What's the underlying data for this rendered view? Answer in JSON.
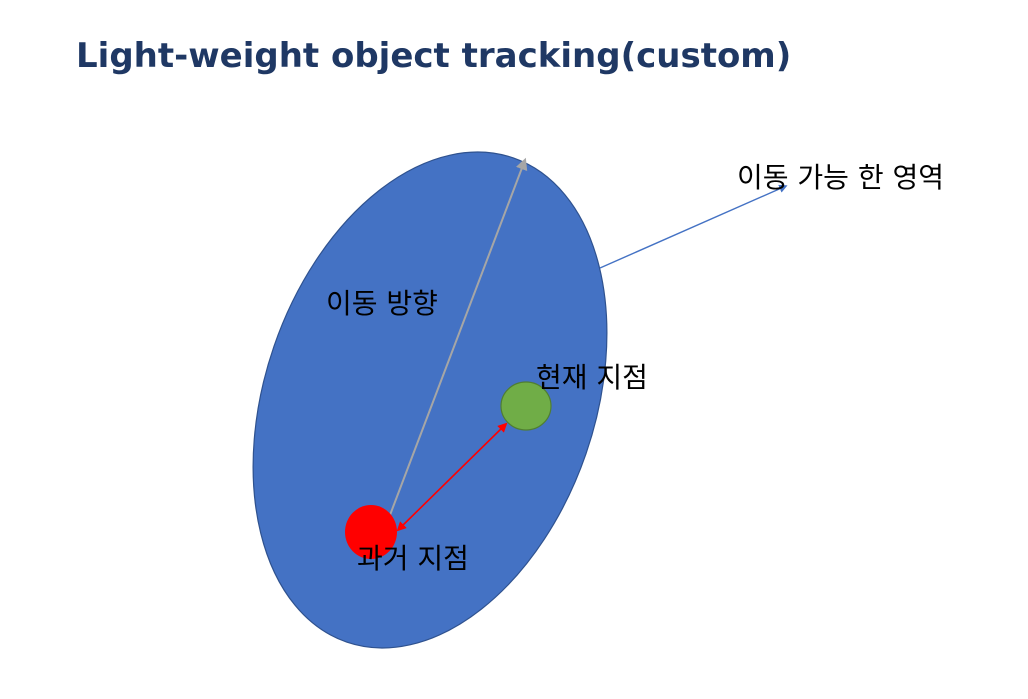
{
  "title": "Light-weight object tracking(custom)",
  "labels": {
    "movable_area": "이동 가능 한 영역",
    "move_direction": "이동 방향",
    "current_point": "현재 지점",
    "past_point": "과거 지점"
  },
  "colors": {
    "title": "#1f3864",
    "region_fill": "#4472c4",
    "region_stroke": "#2f528f",
    "current_point": "#70ad47",
    "past_point": "#ff0000",
    "direction_arrow": "#a6a6a6",
    "link_arrow": "#ff0000",
    "callout_arrow": "#4472c4"
  }
}
